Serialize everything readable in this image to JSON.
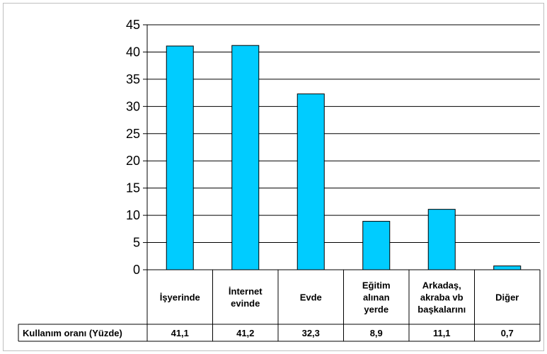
{
  "chart_data": {
    "type": "bar",
    "categories": [
      [
        "İşyerinde"
      ],
      [
        "İnternet",
        "evinde"
      ],
      [
        "Evde"
      ],
      [
        "Eğitim",
        "alınan",
        "yerde"
      ],
      [
        "Arkadaş,",
        "akraba vb",
        "başkalarını"
      ],
      [
        "Diğer"
      ]
    ],
    "series": [
      {
        "name": "Kullanım oranı (Yüzde)",
        "values": [
          41.1,
          41.2,
          32.3,
          8.9,
          11.1,
          0.7
        ]
      }
    ],
    "value_labels": [
      "41,1",
      "41,2",
      "32,3",
      "8,9",
      "11,1",
      "0,7"
    ],
    "yticks": [
      "0",
      "5",
      "10",
      "15",
      "20",
      "25",
      "30",
      "35",
      "40",
      "45"
    ],
    "ylim": [
      0,
      45
    ],
    "grid": true,
    "bar_color": "#00ccff",
    "data_table": true
  }
}
